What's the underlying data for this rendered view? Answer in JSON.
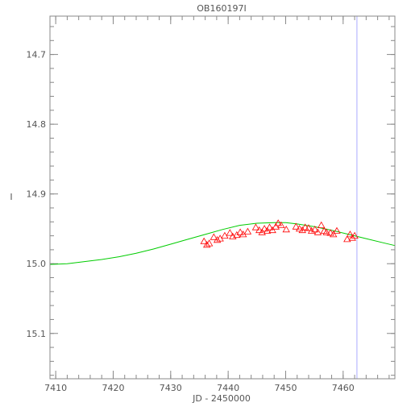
{
  "chart_data": {
    "type": "scatter",
    "title": "OB160197I",
    "xlabel": "JD - 2450000",
    "ylabel": "I",
    "xlim": [
      7409,
      7469
    ],
    "ylim": [
      15.165,
      14.645
    ],
    "y_inverted": true,
    "grid": false,
    "x_ticks": [
      7410,
      7420,
      7430,
      7440,
      7450,
      7460
    ],
    "y_ticks": [
      14.7,
      14.8,
      14.9,
      15.0,
      15.1
    ],
    "x_tick_labels": [
      "7410",
      "7420",
      "7430",
      "7440",
      "7450",
      "7460"
    ],
    "y_tick_labels": [
      "14.7",
      "14.8",
      "14.9",
      "15.0",
      "15.1"
    ],
    "series": [
      {
        "kind": "points",
        "marker": "triangle",
        "color": "#ff0000",
        "x": [
          7435.8,
          7436.3,
          7436.7,
          7437.5,
          7438.1,
          7438.6,
          7439.4,
          7440.3,
          7440.8,
          7441.5,
          7442.1,
          7442.6,
          7443.4,
          7444.8,
          7445.4,
          7445.9,
          7446.3,
          7446.8,
          7447.2,
          7447.7,
          7448.3,
          7448.7,
          7449.2,
          7450.1,
          7451.8,
          7452.4,
          7452.9,
          7453.4,
          7454.0,
          7454.5,
          7455.1,
          7455.6,
          7456.2,
          7456.7,
          7457.1,
          7457.8,
          7458.3,
          7458.9,
          7460.7,
          7461.2,
          7461.6,
          7462.0
        ],
        "y": [
          14.968,
          14.973,
          14.971,
          14.962,
          14.966,
          14.964,
          14.96,
          14.956,
          14.961,
          14.959,
          14.955,
          14.958,
          14.954,
          14.948,
          14.952,
          14.955,
          14.95,
          14.953,
          14.948,
          14.952,
          14.947,
          14.942,
          14.945,
          14.951,
          14.947,
          14.95,
          14.952,
          14.948,
          14.949,
          14.953,
          14.951,
          14.955,
          14.945,
          14.953,
          14.955,
          14.956,
          14.958,
          14.953,
          14.965,
          14.958,
          14.963,
          14.96
        ]
      },
      {
        "kind": "model",
        "color": "#00cc00",
        "x": [
          7409,
          7412,
          7415,
          7418,
          7421,
          7424,
          7427,
          7430,
          7433,
          7436,
          7439,
          7442,
          7445,
          7448,
          7450,
          7452,
          7455,
          7458,
          7461,
          7464,
          7467,
          7469
        ],
        "y": [
          15.001,
          15.0,
          14.997,
          14.994,
          14.99,
          14.985,
          14.979,
          14.972,
          14.965,
          14.958,
          14.951,
          14.945,
          14.942,
          14.941,
          14.941,
          14.943,
          14.947,
          14.952,
          14.958,
          14.964,
          14.97,
          14.974
        ]
      }
    ],
    "vline": {
      "x": 7462.4,
      "color": "#aaaaff"
    }
  }
}
